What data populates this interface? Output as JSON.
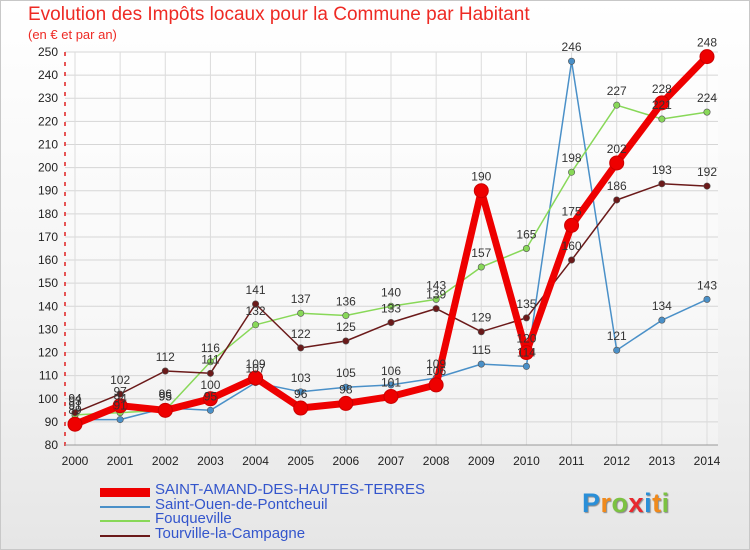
{
  "chart_data": {
    "type": "line",
    "title": "Evolution des Impôts locaux pour la Commune par Habitant",
    "subtitle": "(en € et par an)",
    "xlabel": "",
    "ylabel": "",
    "x": [
      "2000",
      "2001",
      "2002",
      "2003",
      "2004",
      "2005",
      "2006",
      "2007",
      "2008",
      "2009",
      "2010",
      "2011",
      "2012",
      "2013",
      "2014"
    ],
    "yticks": [
      80,
      90,
      100,
      110,
      120,
      130,
      140,
      150,
      160,
      170,
      180,
      190,
      200,
      210,
      220,
      230,
      240,
      250
    ],
    "ylim": [
      80,
      250
    ],
    "grid": true,
    "legend_position": "bottom-left",
    "series": [
      {
        "name": "SAINT-AMAND-DES-HAUTES-TERRES",
        "color": "#ee0000",
        "values": [
          89,
          97,
          95,
          100,
          109,
          96,
          98,
          101,
          106,
          190,
          120,
          175,
          202,
          228,
          248
        ]
      },
      {
        "name": "Saint-Ouen-de-Pontcheuil",
        "color": "#4a90c8",
        "values": [
          91,
          91,
          96,
          95,
          107,
          103,
          105,
          106,
          109,
          115,
          114,
          246,
          121,
          134,
          143
        ]
      },
      {
        "name": "Fouqueville",
        "color": "#88d858",
        "values": [
          93,
          94,
          95,
          116,
          132,
          137,
          136,
          140,
          143,
          157,
          165,
          198,
          227,
          221,
          224
        ]
      },
      {
        "name": "Tourville-la-Campagne",
        "color": "#6b1a1a",
        "values": [
          94,
          102,
          112,
          111,
          141,
          122,
          125,
          133,
          139,
          129,
          135,
          160,
          186,
          193,
          192
        ]
      }
    ]
  },
  "logo": {
    "text": "Proxiti",
    "letters": [
      "P",
      "r",
      "o",
      "x",
      "i",
      "t",
      "i"
    ]
  }
}
